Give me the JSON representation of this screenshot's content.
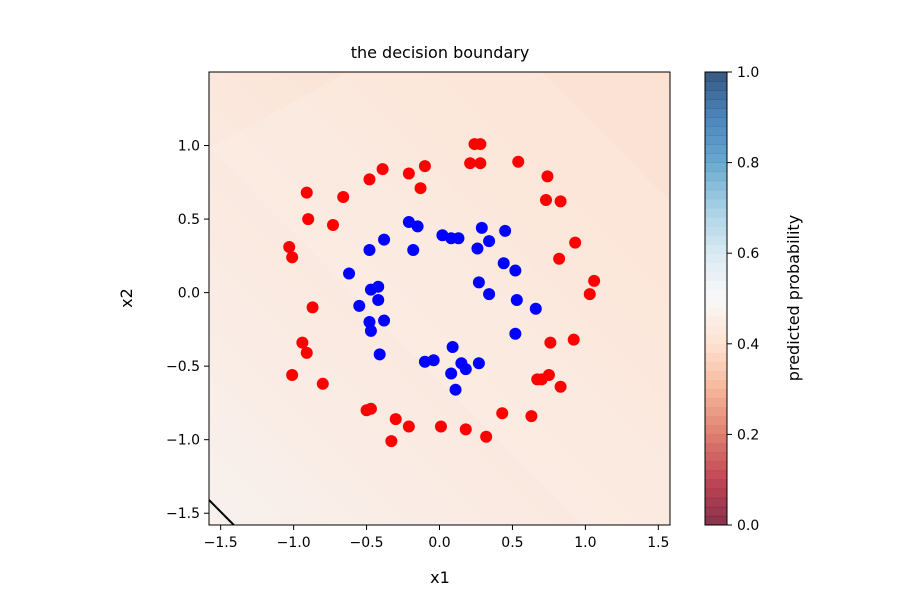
{
  "chart_data": {
    "type": "scatter",
    "title": "the decision boundary",
    "xlabel": "x1",
    "ylabel": "x2",
    "xlim": [
      -1.58,
      1.58
    ],
    "ylim": [
      -1.58,
      1.5
    ],
    "x_ticks": [
      -1.5,
      -1.0,
      -0.5,
      0.0,
      0.5,
      1.0,
      1.5
    ],
    "x_tick_labels": [
      "−1.5",
      "−1.0",
      "−0.5",
      "0.0",
      "0.5",
      "1.0",
      "1.5"
    ],
    "y_ticks": [
      -1.5,
      -1.0,
      -0.5,
      0.0,
      0.5,
      1.0
    ],
    "y_tick_labels": [
      "−1.5",
      "−1.0",
      "−0.5",
      "0.0",
      "0.5",
      "1.0"
    ],
    "grid": false,
    "background": "predicted probability contour; values about 0.42–0.49 across the plotted region, decreasing toward the upper right",
    "decision_boundary": [
      [
        -1.58,
        -1.41
      ],
      [
        -1.41,
        -1.58
      ]
    ],
    "colorbar": {
      "label": "predicted probability",
      "range": [
        0.0,
        1.0
      ],
      "ticks": [
        0.0,
        0.2,
        0.4,
        0.6,
        0.8,
        1.0
      ],
      "tick_labels": [
        "0.0",
        "0.2",
        "0.4",
        "0.6",
        "0.8",
        "1.0"
      ],
      "colormap": "RdBu"
    },
    "series": [
      {
        "color": "#ff0000",
        "points": [
          [
            0.24,
            1.01
          ],
          [
            0.28,
            1.01
          ],
          [
            0.21,
            0.88
          ],
          [
            0.28,
            0.88
          ],
          [
            0.54,
            0.89
          ],
          [
            -0.1,
            0.86
          ],
          [
            -0.39,
            0.84
          ],
          [
            -0.21,
            0.81
          ],
          [
            -0.48,
            0.77
          ],
          [
            -0.13,
            0.71
          ],
          [
            -0.91,
            0.68
          ],
          [
            -0.66,
            0.65
          ],
          [
            0.74,
            0.79
          ],
          [
            0.73,
            0.63
          ],
          [
            0.83,
            0.62
          ],
          [
            -0.9,
            0.5
          ],
          [
            -0.73,
            0.46
          ],
          [
            -1.03,
            0.31
          ],
          [
            -1.01,
            0.24
          ],
          [
            0.93,
            0.34
          ],
          [
            0.82,
            0.23
          ],
          [
            1.06,
            0.08
          ],
          [
            1.03,
            -0.01
          ],
          [
            -0.87,
            -0.1
          ],
          [
            -0.94,
            -0.34
          ],
          [
            -0.91,
            -0.41
          ],
          [
            0.76,
            -0.34
          ],
          [
            0.92,
            -0.32
          ],
          [
            -1.01,
            -0.56
          ],
          [
            -0.8,
            -0.62
          ],
          [
            0.67,
            -0.59
          ],
          [
            0.7,
            -0.59
          ],
          [
            0.75,
            -0.56
          ],
          [
            0.83,
            -0.64
          ],
          [
            -0.5,
            -0.8
          ],
          [
            -0.47,
            -0.79
          ],
          [
            -0.3,
            -0.86
          ],
          [
            -0.21,
            -0.91
          ],
          [
            0.01,
            -0.91
          ],
          [
            0.18,
            -0.93
          ],
          [
            0.43,
            -0.82
          ],
          [
            0.63,
            -0.84
          ],
          [
            0.32,
            -0.98
          ],
          [
            -0.33,
            -1.01
          ]
        ]
      },
      {
        "color": "#0000ff",
        "points": [
          [
            -0.21,
            0.48
          ],
          [
            -0.15,
            0.45
          ],
          [
            0.02,
            0.39
          ],
          [
            0.08,
            0.37
          ],
          [
            0.13,
            0.37
          ],
          [
            0.29,
            0.44
          ],
          [
            0.45,
            0.42
          ],
          [
            0.34,
            0.35
          ],
          [
            0.26,
            0.3
          ],
          [
            -0.38,
            0.36
          ],
          [
            -0.48,
            0.29
          ],
          [
            -0.18,
            0.29
          ],
          [
            -0.62,
            0.13
          ],
          [
            0.44,
            0.2
          ],
          [
            0.52,
            0.15
          ],
          [
            0.27,
            0.07
          ],
          [
            -0.47,
            0.02
          ],
          [
            -0.42,
            0.04
          ],
          [
            -0.42,
            -0.05
          ],
          [
            0.34,
            -0.01
          ],
          [
            0.53,
            -0.05
          ],
          [
            0.66,
            -0.11
          ],
          [
            -0.55,
            -0.09
          ],
          [
            -0.48,
            -0.2
          ],
          [
            -0.38,
            -0.19
          ],
          [
            -0.47,
            -0.26
          ],
          [
            0.52,
            -0.28
          ],
          [
            -0.41,
            -0.42
          ],
          [
            0.09,
            -0.37
          ],
          [
            -0.04,
            -0.46
          ],
          [
            -0.1,
            -0.47
          ],
          [
            0.15,
            -0.48
          ],
          [
            0.27,
            -0.48
          ],
          [
            0.18,
            -0.52
          ],
          [
            0.08,
            -0.55
          ],
          [
            0.11,
            -0.66
          ]
        ]
      }
    ]
  }
}
